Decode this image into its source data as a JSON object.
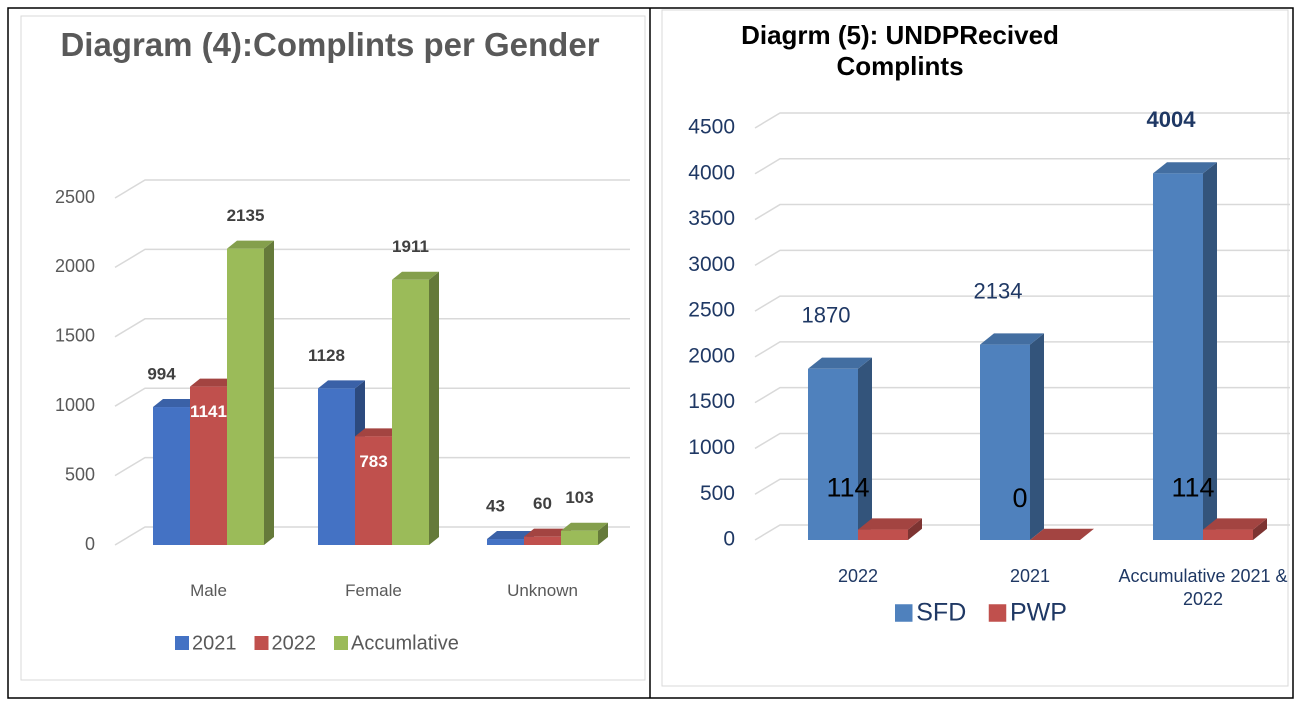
{
  "chart_data": [
    {
      "type": "bar",
      "title": "Diagram (4):Complints per Gender",
      "categories": [
        "Male",
        "Female",
        "Unknown"
      ],
      "series": [
        {
          "name": "2021",
          "color": "#4472c4",
          "values": [
            994,
            1128,
            43
          ]
        },
        {
          "name": "2022",
          "color": "#c0504d",
          "values": [
            1141,
            783,
            60
          ]
        },
        {
          "name": "Accumlative",
          "color": "#9bbb59",
          "values": [
            2135,
            1911,
            103
          ]
        }
      ],
      "ylim": [
        0,
        2500
      ],
      "yticks": [
        0,
        500,
        1000,
        1500,
        2000,
        2500
      ],
      "grid": true,
      "legend": "bottom"
    },
    {
      "type": "bar",
      "title": "Diagrm (5): UNDPRecived Complints",
      "categories": [
        "2022",
        "2021",
        "Accumulative 2021 & 2022"
      ],
      "series": [
        {
          "name": "SFD",
          "color": "#4f81bd",
          "values": [
            1870,
            2134,
            4004
          ]
        },
        {
          "name": "PWP",
          "color": "#c0504d",
          "values": [
            114,
            0,
            114
          ]
        }
      ],
      "ylim": [
        0,
        4500
      ],
      "yticks": [
        0,
        500,
        1000,
        1500,
        2000,
        2500,
        3000,
        3500,
        4000,
        4500
      ],
      "grid": true,
      "legend": "bottom"
    }
  ]
}
